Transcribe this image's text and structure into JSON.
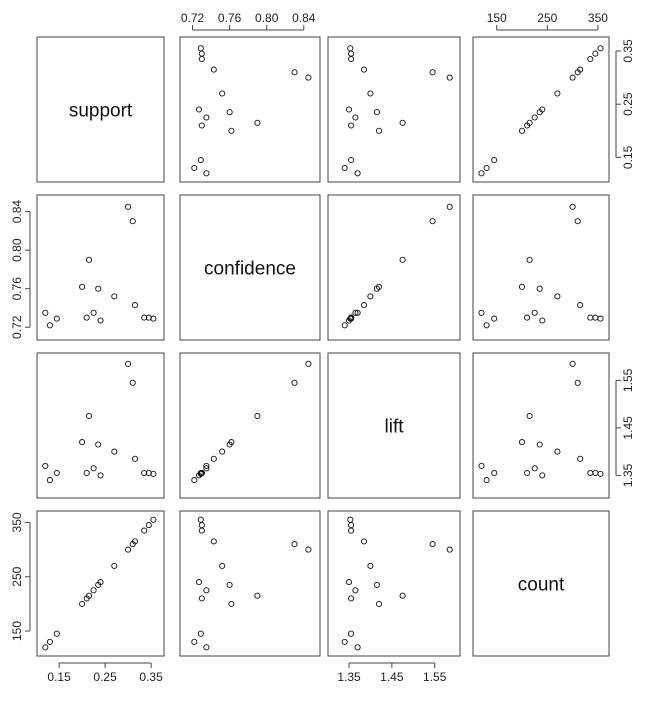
{
  "chart_data": {
    "type": "scatter",
    "variables": [
      "support",
      "confidence",
      "lift",
      "count"
    ],
    "axis_ranges": {
      "support": [
        0.115,
        0.365
      ],
      "confidence": [
        0.713,
        0.851
      ],
      "lift": [
        1.315,
        1.595
      ],
      "count": [
        115,
        360
      ]
    },
    "tick_values": {
      "support": [
        0.15,
        0.25,
        0.35
      ],
      "confidence": [
        0.72,
        0.76,
        0.8,
        0.84
      ],
      "lift": [
        1.35,
        1.45,
        1.55
      ],
      "count": [
        150,
        250,
        350
      ]
    },
    "tick_labels": {
      "support": [
        "0.15",
        "0.25",
        "0.35"
      ],
      "confidence": [
        "0.72",
        "0.76",
        "0.80",
        "0.84"
      ],
      "lift": [
        "1.35",
        "1.45",
        "1.55"
      ],
      "count": [
        "150",
        "250",
        "350"
      ]
    },
    "points": [
      {
        "support": 0.12,
        "confidence": 0.735,
        "lift": 1.37,
        "count": 120
      },
      {
        "support": 0.13,
        "confidence": 0.722,
        "lift": 1.34,
        "count": 130
      },
      {
        "support": 0.145,
        "confidence": 0.729,
        "lift": 1.355,
        "count": 145
      },
      {
        "support": 0.2,
        "confidence": 0.762,
        "lift": 1.42,
        "count": 200
      },
      {
        "support": 0.21,
        "confidence": 0.73,
        "lift": 1.355,
        "count": 210
      },
      {
        "support": 0.215,
        "confidence": 0.79,
        "lift": 1.475,
        "count": 215
      },
      {
        "support": 0.225,
        "confidence": 0.735,
        "lift": 1.365,
        "count": 225
      },
      {
        "support": 0.235,
        "confidence": 0.76,
        "lift": 1.415,
        "count": 235
      },
      {
        "support": 0.24,
        "confidence": 0.727,
        "lift": 1.35,
        "count": 240
      },
      {
        "support": 0.27,
        "confidence": 0.752,
        "lift": 1.4,
        "count": 270
      },
      {
        "support": 0.3,
        "confidence": 0.845,
        "lift": 1.585,
        "count": 300
      },
      {
        "support": 0.31,
        "confidence": 0.83,
        "lift": 1.545,
        "count": 310
      },
      {
        "support": 0.315,
        "confidence": 0.743,
        "lift": 1.385,
        "count": 315
      },
      {
        "support": 0.335,
        "confidence": 0.73,
        "lift": 1.355,
        "count": 335
      },
      {
        "support": 0.345,
        "confidence": 0.73,
        "lift": 1.355,
        "count": 345
      },
      {
        "support": 0.355,
        "confidence": 0.729,
        "lift": 1.353,
        "count": 355
      }
    ]
  }
}
